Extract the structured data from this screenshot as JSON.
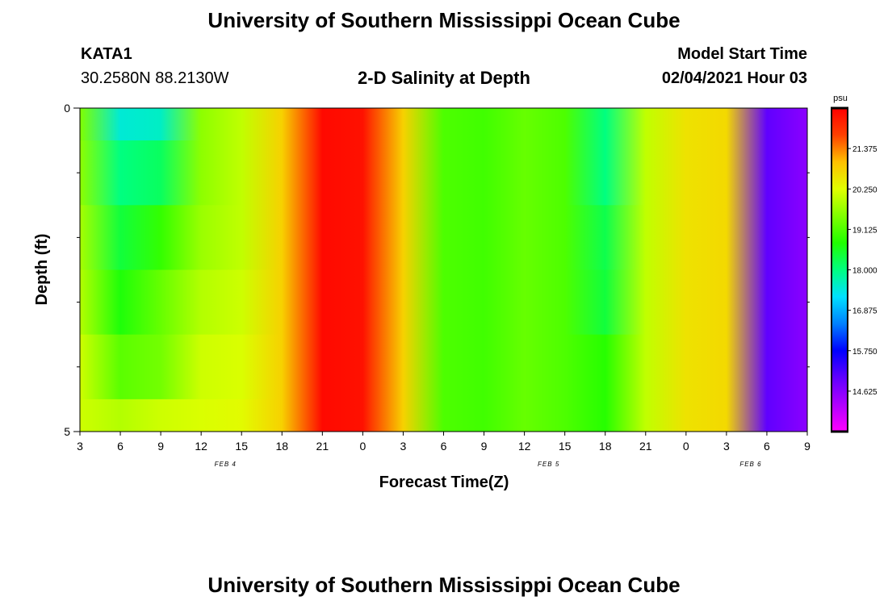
{
  "header": {
    "title": "University of Southern Mississippi Ocean Cube",
    "station_id": "KATA1",
    "station_coords": "30.2580N 88.2130W",
    "model_label": "Model Start Time",
    "model_time": "02/04/2021 Hour 03",
    "chart_title": "2-D Salinity at Depth"
  },
  "footer": {
    "title": "University of Southern Mississippi Ocean Cube"
  },
  "colors": {
    "ramp_low_to_high": [
      "#ff00ff",
      "#b000ff",
      "#6000ff",
      "#0000ff",
      "#0080ff",
      "#00e0ff",
      "#00ff80",
      "#20ff00",
      "#80ff00",
      "#e0ff00",
      "#ffc000",
      "#ff4000",
      "#ff0000"
    ]
  },
  "chart_data": {
    "type": "heatmap",
    "xlabel": "Forecast Time(Z)",
    "ylabel": "Depth (ft)",
    "units": "psu",
    "x_tick_labels": [
      "3",
      "6",
      "9",
      "12",
      "15",
      "18",
      "21",
      "0",
      "3",
      "6",
      "9",
      "12",
      "15",
      "18",
      "21",
      "0",
      "3",
      "6",
      "9"
    ],
    "date_labels": [
      "FEB 4",
      "FEB 5",
      "FEB 6"
    ],
    "y_tick_labels": [
      "0",
      "5"
    ],
    "ylim": [
      0,
      5
    ],
    "colorbar_labels": [
      "21.375",
      "20.250",
      "19.125",
      "18.000",
      "16.875",
      "15.750",
      "14.625"
    ],
    "colorbar_range": [
      13.5,
      22.5
    ],
    "time_hours_from_start": [
      0,
      3,
      6,
      9,
      12,
      15,
      18,
      21,
      24,
      27,
      30,
      33,
      36,
      39,
      42,
      45,
      48,
      51,
      54
    ],
    "depth_rows": [
      {
        "depth_range_ft": [
          0,
          0.5
        ],
        "values": [
          19.5,
          17.5,
          17.6,
          19.6,
          20.0,
          20.8,
          22.4,
          22.3,
          20.8,
          19.1,
          19.0,
          19.3,
          19.1,
          18.0,
          20.0,
          20.6,
          20.7,
          15.0,
          14.6
        ]
      },
      {
        "depth_range_ft": [
          0.5,
          1.5
        ],
        "values": [
          19.6,
          18.0,
          18.2,
          19.6,
          20.0,
          20.8,
          22.4,
          22.3,
          20.8,
          19.1,
          19.0,
          19.3,
          19.1,
          18.0,
          20.0,
          20.6,
          20.7,
          15.0,
          14.6
        ]
      },
      {
        "depth_range_ft": [
          1.5,
          2.5
        ],
        "values": [
          19.8,
          18.4,
          18.9,
          19.7,
          20.0,
          20.8,
          22.4,
          22.3,
          20.8,
          19.1,
          19.0,
          19.3,
          19.1,
          18.3,
          20.0,
          20.6,
          20.7,
          15.0,
          14.6
        ]
      },
      {
        "depth_range_ft": [
          2.5,
          3.5
        ],
        "values": [
          19.9,
          18.7,
          19.3,
          19.9,
          20.1,
          20.8,
          22.4,
          22.3,
          20.8,
          19.1,
          19.0,
          19.3,
          19.1,
          18.4,
          20.0,
          20.6,
          20.7,
          15.0,
          14.6
        ]
      },
      {
        "depth_range_ft": [
          3.5,
          4.5
        ],
        "values": [
          20.1,
          19.2,
          19.4,
          20.1,
          20.2,
          20.8,
          22.4,
          22.3,
          20.8,
          19.1,
          19.0,
          19.3,
          19.1,
          18.8,
          20.0,
          20.6,
          20.7,
          15.0,
          14.6
        ]
      },
      {
        "depth_range_ft": [
          4.5,
          5.0
        ],
        "values": [
          20.1,
          19.9,
          20.1,
          20.2,
          20.3,
          20.8,
          22.4,
          22.3,
          20.8,
          19.1,
          19.0,
          19.3,
          19.1,
          18.8,
          20.0,
          20.6,
          20.7,
          15.0,
          14.6
        ]
      }
    ]
  }
}
